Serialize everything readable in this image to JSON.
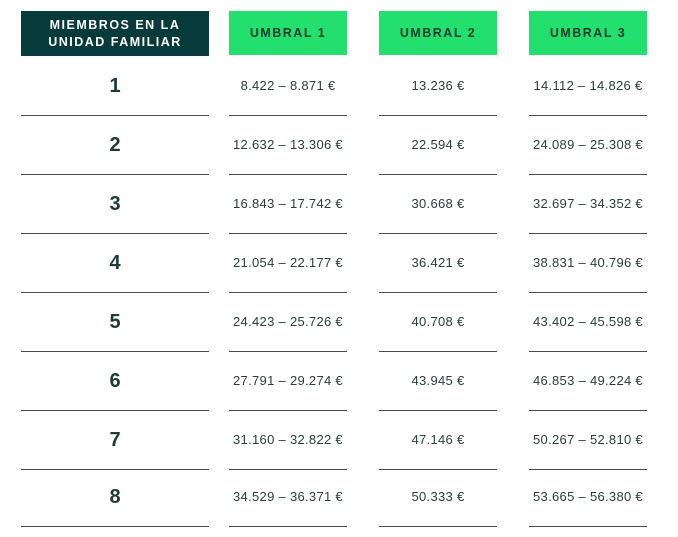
{
  "headers": {
    "members": "MIEMBROS EN LA\nUNIDAD FAMILIAR",
    "umbral1": "UMBRAL 1",
    "umbral2": "UMBRAL 2",
    "umbral3": "UMBRAL 3"
  },
  "colors": {
    "members_header_bg": "#073a3a",
    "umbral_header_bg": "#23e06e",
    "divider": "#4b4b4b"
  },
  "rows": [
    {
      "members": "1",
      "umbral1": "8.422 – 8.871 €",
      "umbral2": "13.236 €",
      "umbral3": "14.112 – 14.826 €"
    },
    {
      "members": "2",
      "umbral1": "12.632 – 13.306 €",
      "umbral2": "22.594 €",
      "umbral3": "24.089 – 25.308 €"
    },
    {
      "members": "3",
      "umbral1": "16.843 – 17.742 €",
      "umbral2": "30.668 €",
      "umbral3": "32.697 – 34.352 €"
    },
    {
      "members": "4",
      "umbral1": "21.054 – 22.177 €",
      "umbral2": "36.421 €",
      "umbral3": "38.831 – 40.796 €"
    },
    {
      "members": "5",
      "umbral1": "24.423 – 25.726 €",
      "umbral2": "40.708 €",
      "umbral3": "43.402 – 45.598 €"
    },
    {
      "members": "6",
      "umbral1": "27.791 – 29.274 €",
      "umbral2": "43.945 €",
      "umbral3": "46.853 – 49.224 €"
    },
    {
      "members": "7",
      "umbral1": "31.160 – 32.822 €",
      "umbral2": "47.146 €",
      "umbral3": "50.267 – 52.810 €"
    },
    {
      "members": "8",
      "umbral1": "34.529 – 36.371 €",
      "umbral2": "50.333 €",
      "umbral3": "53.665 – 56.380 €"
    }
  ]
}
